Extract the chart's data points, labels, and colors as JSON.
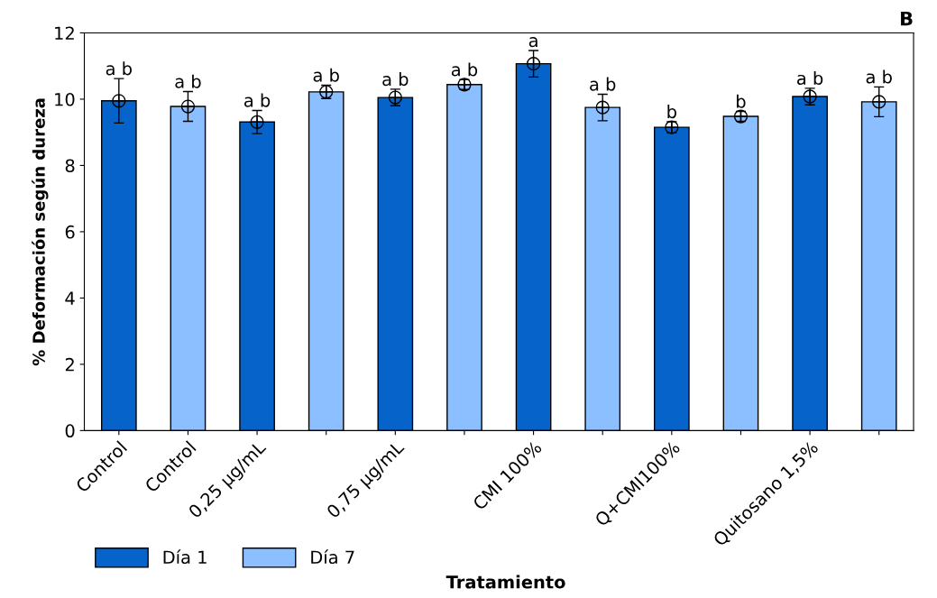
{
  "chart_data": {
    "type": "bar",
    "title": "B",
    "xlabel": "Tratamiento",
    "ylabel": "% Deformación según dureza",
    "categories": [
      "Control",
      "Control",
      "0,25 µg/mL",
      null,
      "0,75 µg/mL",
      null,
      "CMI 100%",
      null,
      "Q+CMI100%",
      null,
      "Quitosano 1,5%",
      null
    ],
    "series": [
      {
        "name": "Día 1",
        "color": "#0563c9",
        "values": [
          9.95,
          null,
          9.31,
          null,
          10.05,
          null,
          11.07,
          null,
          9.15,
          null,
          10.08,
          null
        ],
        "errors": [
          0.67,
          null,
          0.35,
          null,
          0.25,
          null,
          0.4,
          null,
          0.17,
          null,
          0.25,
          null
        ]
      },
      {
        "name": "Día 7",
        "color": "#8cbfff",
        "values": [
          null,
          9.78,
          null,
          10.22,
          null,
          10.44,
          null,
          9.75,
          null,
          9.48,
          null,
          9.92
        ],
        "errors": [
          null,
          0.45,
          null,
          0.2,
          null,
          0.15,
          null,
          0.4,
          null,
          0.15,
          null,
          0.45
        ]
      }
    ],
    "annotations": [
      {
        "text": "a b",
        "y": 10.62
      },
      {
        "text": "a b",
        "y": 10.23
      },
      {
        "text": "a b",
        "y": 9.66
      },
      {
        "text": "a b",
        "y": 10.42
      },
      {
        "text": "a b",
        "y": 10.3
      },
      {
        "text": "a b",
        "y": 10.59
      },
      {
        "text": "a",
        "y": 11.47
      },
      {
        "text": "a b",
        "y": 10.15
      },
      {
        "text": "b",
        "y": 9.32
      },
      {
        "text": "b",
        "y": 9.63
      },
      {
        "text": "a b",
        "y": 10.33
      },
      {
        "text": "a b",
        "y": 10.37
      }
    ],
    "ylim": [
      0,
      12
    ],
    "yticks": [
      0,
      2,
      4,
      6,
      8,
      10,
      12
    ],
    "grid": false,
    "legend": "bottom left",
    "marker": "circle"
  }
}
